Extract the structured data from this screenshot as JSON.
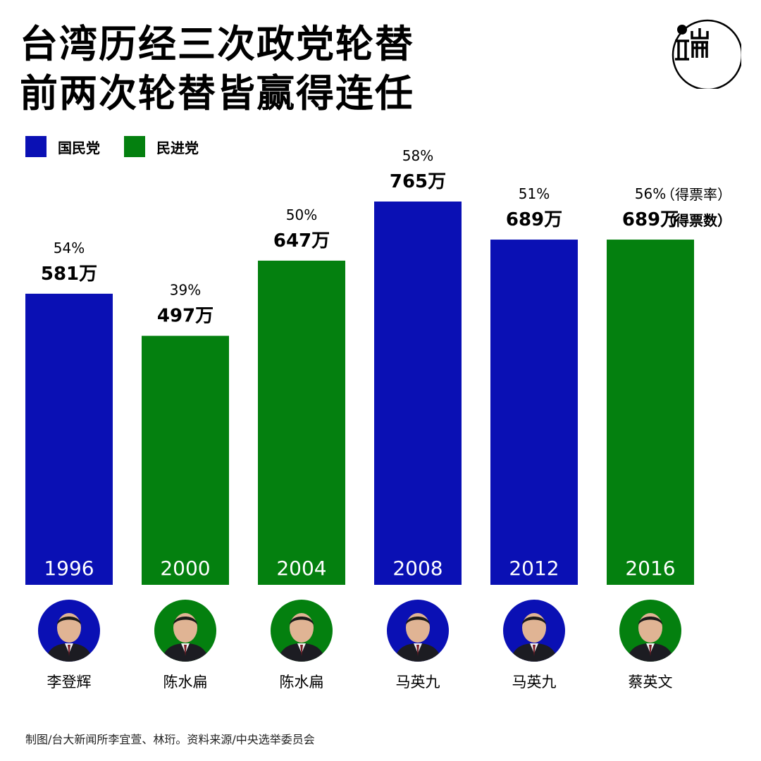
{
  "title": {
    "line1": "台湾历经三次政党轮替",
    "line2": "前两次轮替皆赢得连任"
  },
  "logo": {
    "icon": "initium-logo",
    "color": "#000000"
  },
  "legend": [
    {
      "label": "国民党",
      "color": "#0A10B4"
    },
    {
      "label": "民进党",
      "color": "#04800F"
    }
  ],
  "notes": {
    "rate": "（得票率）",
    "votes": "（得票数）"
  },
  "chart_data": {
    "type": "bar",
    "categories": [
      "1996",
      "2000",
      "2004",
      "2008",
      "2012",
      "2016"
    ],
    "series": [
      {
        "name": "得票数",
        "values": [
          581,
          497,
          647,
          765,
          689,
          689
        ]
      },
      {
        "name": "得票率",
        "values": [
          54,
          39,
          50,
          58,
          51,
          56
        ]
      }
    ],
    "value_labels": [
      "581万",
      "497万",
      "647万",
      "765万",
      "689万",
      "689万"
    ],
    "percent_labels": [
      "54%",
      "39%",
      "50%",
      "58%",
      "51%",
      "56%"
    ],
    "parties": [
      "国民党",
      "民进党",
      "民进党",
      "国民党",
      "国民党",
      "民进党"
    ],
    "colors": [
      "#0A10B4",
      "#04800F",
      "#04800F",
      "#0A10B4",
      "#0A10B4",
      "#04800F"
    ],
    "title": "",
    "xlabel": "",
    "ylabel": "",
    "grid": false,
    "legend_position": "top-left"
  },
  "candidates": [
    {
      "name": "李登辉",
      "party_color": "#0A10B4",
      "icon": "portrait-icon"
    },
    {
      "name": "陈水扁",
      "party_color": "#04800F",
      "icon": "portrait-icon"
    },
    {
      "name": "陈水扁",
      "party_color": "#04800F",
      "icon": "portrait-icon"
    },
    {
      "name": "马英九",
      "party_color": "#0A10B4",
      "icon": "portrait-icon"
    },
    {
      "name": "马英九",
      "party_color": "#0A10B4",
      "icon": "portrait-icon"
    },
    {
      "name": "蔡英文",
      "party_color": "#04800F",
      "icon": "portrait-icon"
    }
  ],
  "footer": "制图/台大新闻所李宜萱、林珩。资料来源/中央选举委员会"
}
